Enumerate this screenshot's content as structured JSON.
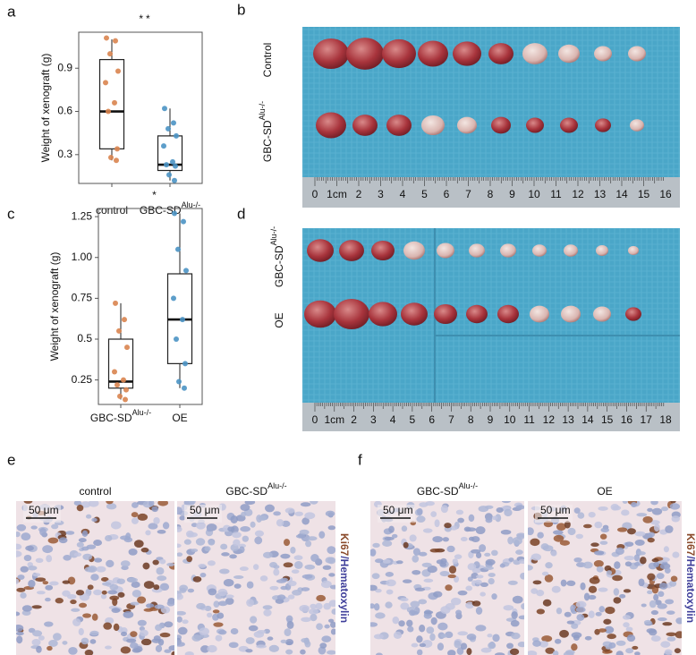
{
  "chart_data": [
    {
      "type": "box",
      "panel": "a",
      "title": "**",
      "ylabel": "Weight of xenograft (g)",
      "categories": [
        "control",
        "GBC-SD"
      ],
      "category_superscripts": [
        null,
        "Alu-/-"
      ],
      "colors": [
        "#d9844f",
        "#4b93c4"
      ],
      "ylim": [
        0.1,
        1.15
      ],
      "yticks": [
        0.3,
        0.6,
        0.9
      ],
      "boxes": [
        {
          "min": 0.26,
          "q1": 0.34,
          "median": 0.6,
          "q3": 0.96,
          "max": 1.1,
          "points": [
            1.11,
            1.09,
            1.0,
            0.88,
            0.8,
            0.66,
            0.6,
            0.34,
            0.28,
            0.26
          ]
        },
        {
          "min": 0.12,
          "q1": 0.19,
          "median": 0.23,
          "q3": 0.43,
          "max": 0.62,
          "points": [
            0.62,
            0.52,
            0.48,
            0.43,
            0.36,
            0.25,
            0.23,
            0.22,
            0.16,
            0.12
          ]
        }
      ]
    },
    {
      "type": "box",
      "panel": "c",
      "title": "*",
      "ylabel": "Weight of xenograft (g)",
      "categories": [
        "GBC-SD",
        "OE"
      ],
      "category_superscripts": [
        "Alu-/-",
        null
      ],
      "colors": [
        "#d9844f",
        "#4b93c4"
      ],
      "ylim": [
        0.1,
        1.3
      ],
      "yticks": [
        0.25,
        0.5,
        0.75,
        {
          "value": 1,
          "label": "1.00"
        },
        1.25
      ],
      "boxes": [
        {
          "min": 0.13,
          "q1": 0.2,
          "median": 0.24,
          "q3": 0.5,
          "max": 0.72,
          "points": [
            0.72,
            0.62,
            0.55,
            0.45,
            0.3,
            0.25,
            0.22,
            0.19,
            0.15,
            0.13
          ]
        },
        {
          "min": 0.2,
          "q1": 0.35,
          "median": 0.62,
          "q3": 0.9,
          "max": 1.27,
          "points": [
            1.27,
            1.22,
            1.05,
            0.92,
            0.75,
            0.62,
            0.5,
            0.35,
            0.24,
            0.2
          ]
        }
      ]
    }
  ],
  "photos": {
    "b": {
      "label": "b",
      "rows": [
        {
          "text": "Control"
        },
        {
          "text": "GBC-SD",
          "superscript": "Alu-/-"
        }
      ],
      "ruler": [
        "0",
        "1cm",
        "2",
        "3",
        "4",
        "5",
        "6",
        "7",
        "8",
        "9",
        "10",
        "11",
        "12",
        "13",
        "14",
        "15",
        "16"
      ]
    },
    "d": {
      "label": "d",
      "rows": [
        {
          "text": "GBC-SD",
          "superscript": "Alu-/-"
        },
        {
          "text": "OE"
        }
      ],
      "ruler": [
        "0",
        "1cm",
        "2",
        "3",
        "4",
        "5",
        "6",
        "7",
        "8",
        "9",
        "10",
        "11",
        "12",
        "13",
        "14",
        "15",
        "16",
        "17",
        "18"
      ]
    }
  },
  "ihc": {
    "e": {
      "label": "e",
      "titles": [
        {
          "text": "control"
        },
        {
          "text": "GBC-SD",
          "superscript": "Alu-/-"
        }
      ],
      "scale_bar": "50 μm",
      "stain": [
        "Ki67",
        "/Hematoxylin"
      ]
    },
    "f": {
      "label": "f",
      "titles": [
        {
          "text": "GBC-SD",
          "superscript": "Alu-/-"
        },
        {
          "text": "OE"
        }
      ],
      "scale_bar": "50 μm",
      "stain": [
        "Ki67",
        "/Hematoxylin"
      ]
    }
  }
}
